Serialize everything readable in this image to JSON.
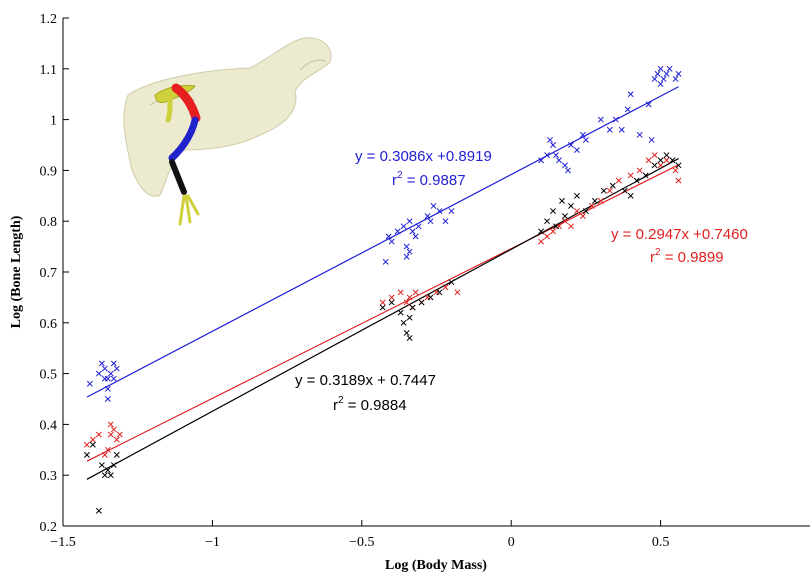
{
  "chart_data": {
    "type": "scatter",
    "xlabel": "Log (Body Mass)",
    "ylabel": "Log (Bone Length)",
    "xlim": [
      -1.5,
      1.0
    ],
    "ylim": [
      0.2,
      1.2
    ],
    "x_ticks": [
      -1.5,
      -1,
      -0.5,
      0,
      0.5
    ],
    "x_tick_labels": [
      "−1.5",
      "−1",
      "−0.5",
      "0",
      "0.5"
    ],
    "y_ticks": [
      0.2,
      0.3,
      0.4,
      0.5,
      0.6,
      0.7,
      0.8,
      0.9,
      1.0,
      1.1,
      1.2
    ],
    "y_tick_labels": [
      "0.2",
      "0.3",
      "0.4",
      "0.5",
      "0.6",
      "0.7",
      "0.8",
      "0.9",
      "1",
      "1.1",
      "1.2"
    ],
    "grid": false,
    "legend": "none",
    "series": [
      {
        "color": "#1f1fd6",
        "marker": "x",
        "slope": 0.3086,
        "intercept": 0.8919,
        "fit_x": [
          -1.42,
          0.56
        ],
        "equation": "y = 0.3086x +0.8919",
        "r2_label": "r",
        "r2_exp": "2",
        "r2_value": " = 0.9887",
        "points": [
          [
            -1.41,
            0.48
          ],
          [
            -1.38,
            0.5
          ],
          [
            -1.37,
            0.52
          ],
          [
            -1.36,
            0.51
          ],
          [
            -1.35,
            0.49
          ],
          [
            -1.34,
            0.5
          ],
          [
            -1.33,
            0.52
          ],
          [
            -1.32,
            0.51
          ],
          [
            -1.35,
            0.47
          ],
          [
            -1.35,
            0.45
          ],
          [
            -1.36,
            0.49
          ],
          [
            -1.33,
            0.49
          ],
          [
            -0.42,
            0.72
          ],
          [
            -0.41,
            0.77
          ],
          [
            -0.4,
            0.76
          ],
          [
            -0.38,
            0.78
          ],
          [
            -0.36,
            0.79
          ],
          [
            -0.35,
            0.75
          ],
          [
            -0.35,
            0.73
          ],
          [
            -0.34,
            0.74
          ],
          [
            -0.34,
            0.8
          ],
          [
            -0.33,
            0.78
          ],
          [
            -0.32,
            0.77
          ],
          [
            -0.31,
            0.79
          ],
          [
            -0.28,
            0.81
          ],
          [
            -0.27,
            0.8
          ],
          [
            -0.26,
            0.83
          ],
          [
            -0.24,
            0.82
          ],
          [
            -0.22,
            0.8
          ],
          [
            -0.2,
            0.82
          ],
          [
            0.1,
            0.92
          ],
          [
            0.12,
            0.93
          ],
          [
            0.13,
            0.96
          ],
          [
            0.14,
            0.95
          ],
          [
            0.15,
            0.93
          ],
          [
            0.16,
            0.92
          ],
          [
            0.18,
            0.91
          ],
          [
            0.19,
            0.9
          ],
          [
            0.2,
            0.95
          ],
          [
            0.22,
            0.94
          ],
          [
            0.24,
            0.97
          ],
          [
            0.25,
            0.96
          ],
          [
            0.3,
            1.0
          ],
          [
            0.33,
            0.98
          ],
          [
            0.35,
            1.0
          ],
          [
            0.37,
            0.98
          ],
          [
            0.39,
            1.02
          ],
          [
            0.4,
            1.05
          ],
          [
            0.43,
            0.97
          ],
          [
            0.47,
            0.96
          ],
          [
            0.48,
            1.08
          ],
          [
            0.49,
            1.09
          ],
          [
            0.5,
            1.1
          ],
          [
            0.5,
            1.07
          ],
          [
            0.51,
            1.08
          ],
          [
            0.52,
            1.09
          ],
          [
            0.53,
            1.1
          ],
          [
            0.55,
            1.08
          ],
          [
            0.56,
            1.09
          ],
          [
            0.46,
            1.03
          ]
        ]
      },
      {
        "color": "#e02020",
        "marker": "x",
        "slope": 0.2947,
        "intercept": 0.746,
        "fit_x": [
          -1.42,
          0.56
        ],
        "equation": "y = 0.2947x +0.7460",
        "r2_label": "r",
        "r2_exp": "2",
        "r2_value": " = 0.9899",
        "points": [
          [
            -1.42,
            0.36
          ],
          [
            -1.4,
            0.37
          ],
          [
            -1.38,
            0.38
          ],
          [
            -1.36,
            0.34
          ],
          [
            -1.35,
            0.35
          ],
          [
            -1.34,
            0.4
          ],
          [
            -1.34,
            0.38
          ],
          [
            -1.33,
            0.39
          ],
          [
            -1.32,
            0.37
          ],
          [
            -1.31,
            0.38
          ],
          [
            -0.43,
            0.64
          ],
          [
            -0.4,
            0.65
          ],
          [
            -0.37,
            0.66
          ],
          [
            -0.35,
            0.64
          ],
          [
            -0.34,
            0.65
          ],
          [
            -0.33,
            0.63
          ],
          [
            -0.32,
            0.66
          ],
          [
            -0.3,
            0.64
          ],
          [
            -0.28,
            0.65
          ],
          [
            -0.25,
            0.66
          ],
          [
            -0.22,
            0.67
          ],
          [
            -0.18,
            0.66
          ],
          [
            0.1,
            0.76
          ],
          [
            0.12,
            0.77
          ],
          [
            0.14,
            0.78
          ],
          [
            0.16,
            0.79
          ],
          [
            0.18,
            0.8
          ],
          [
            0.2,
            0.79
          ],
          [
            0.22,
            0.82
          ],
          [
            0.24,
            0.81
          ],
          [
            0.27,
            0.83
          ],
          [
            0.3,
            0.84
          ],
          [
            0.33,
            0.86
          ],
          [
            0.36,
            0.88
          ],
          [
            0.4,
            0.89
          ],
          [
            0.43,
            0.9
          ],
          [
            0.46,
            0.92
          ],
          [
            0.48,
            0.93
          ],
          [
            0.5,
            0.91
          ],
          [
            0.52,
            0.92
          ],
          [
            0.55,
            0.9
          ],
          [
            0.56,
            0.88
          ]
        ]
      },
      {
        "color": "#000000",
        "marker": "x",
        "slope": 0.3189,
        "intercept": 0.7447,
        "fit_x": [
          -1.42,
          0.56
        ],
        "equation": "y = 0.3189x + 0.7447",
        "r2_label": "r",
        "r2_exp": "2",
        "r2_value": " = 0.9884",
        "points": [
          [
            -1.42,
            0.34
          ],
          [
            -1.4,
            0.36
          ],
          [
            -1.37,
            0.32
          ],
          [
            -1.36,
            0.3
          ],
          [
            -1.35,
            0.31
          ],
          [
            -1.34,
            0.3
          ],
          [
            -1.33,
            0.32
          ],
          [
            -1.38,
            0.23
          ],
          [
            -1.32,
            0.34
          ],
          [
            -0.43,
            0.63
          ],
          [
            -0.4,
            0.64
          ],
          [
            -0.37,
            0.62
          ],
          [
            -0.36,
            0.6
          ],
          [
            -0.35,
            0.58
          ],
          [
            -0.34,
            0.61
          ],
          [
            -0.34,
            0.57
          ],
          [
            -0.33,
            0.63
          ],
          [
            -0.3,
            0.64
          ],
          [
            -0.27,
            0.65
          ],
          [
            -0.24,
            0.66
          ],
          [
            -0.2,
            0.68
          ],
          [
            0.1,
            0.78
          ],
          [
            0.12,
            0.8
          ],
          [
            0.14,
            0.82
          ],
          [
            0.15,
            0.79
          ],
          [
            0.17,
            0.84
          ],
          [
            0.18,
            0.81
          ],
          [
            0.2,
            0.83
          ],
          [
            0.22,
            0.85
          ],
          [
            0.25,
            0.82
          ],
          [
            0.28,
            0.84
          ],
          [
            0.31,
            0.86
          ],
          [
            0.34,
            0.87
          ],
          [
            0.38,
            0.86
          ],
          [
            0.4,
            0.85
          ],
          [
            0.42,
            0.88
          ],
          [
            0.45,
            0.89
          ],
          [
            0.48,
            0.91
          ],
          [
            0.5,
            0.92
          ],
          [
            0.52,
            0.93
          ],
          [
            0.54,
            0.92
          ],
          [
            0.56,
            0.91
          ]
        ]
      }
    ]
  },
  "inset_image": {
    "description_icon": "bird-skeleton-limb-icon",
    "colors": [
      "#d6d3a8",
      "#e51f1f",
      "#2222cc",
      "#111111",
      "#cfd13a"
    ]
  }
}
